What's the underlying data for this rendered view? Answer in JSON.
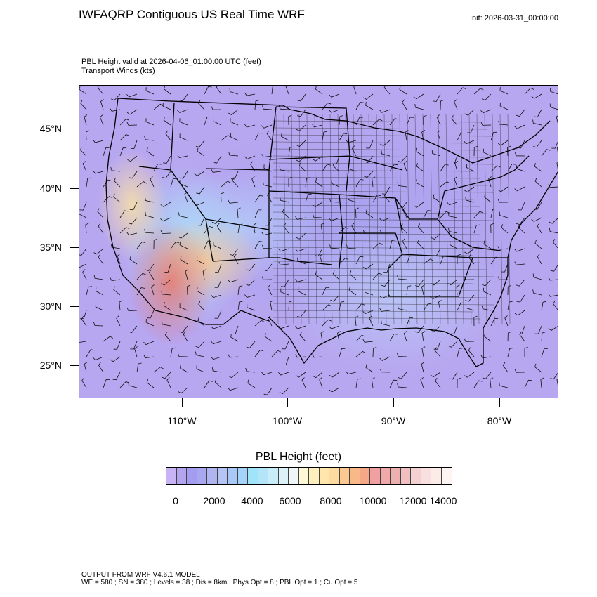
{
  "header": {
    "title": "IWFAQRP Contiguous US Real Time WRF",
    "init": "Init: 2026-03-31_00:00:00",
    "field_line1": "PBL Height valid at 2026-04-06_01:00:00 UTC   (feet)",
    "field_line2": "Transport Winds   (kts)"
  },
  "map": {
    "lat_labels": [
      "45°N",
      "40°N",
      "35°N",
      "30°N",
      "25°N"
    ],
    "lon_labels": [
      "110°W",
      "100°W",
      "90°W",
      "80°W"
    ]
  },
  "legend": {
    "title": "PBL Height  (feet)",
    "labels": [
      "0",
      "2000",
      "4000",
      "6000",
      "8000",
      "10000",
      "12000",
      "14000"
    ],
    "colors": [
      "#c8b4f5",
      "#b4a4f0",
      "#a49cf0",
      "#a8a8f0",
      "#b0b4f0",
      "#b4c4f4",
      "#a8c8f8",
      "#a4d4fa",
      "#a0e4fa",
      "#b4e4f8",
      "#c8ecf8",
      "#dcf2f8",
      "#eef6f8",
      "#fef8d4",
      "#fef0bc",
      "#fee6ac",
      "#fcdaa0",
      "#fac890",
      "#f8b888",
      "#f4a888",
      "#f0a0a0",
      "#f0a8a8",
      "#ecb0b0",
      "#f0c0c0",
      "#f4d0d0",
      "#f8e0e0",
      "#fcece8",
      "#fef4f2"
    ]
  },
  "footer": {
    "line1": "OUTPUT FROM WRF V4.6.1 MODEL",
    "line2": "WE = 580 ; SN = 380 ; Levels = 38 ; Dis = 8km ; Phys Opt = 8 ; PBL Opt = 1 ; Cu Opt = 5"
  }
}
